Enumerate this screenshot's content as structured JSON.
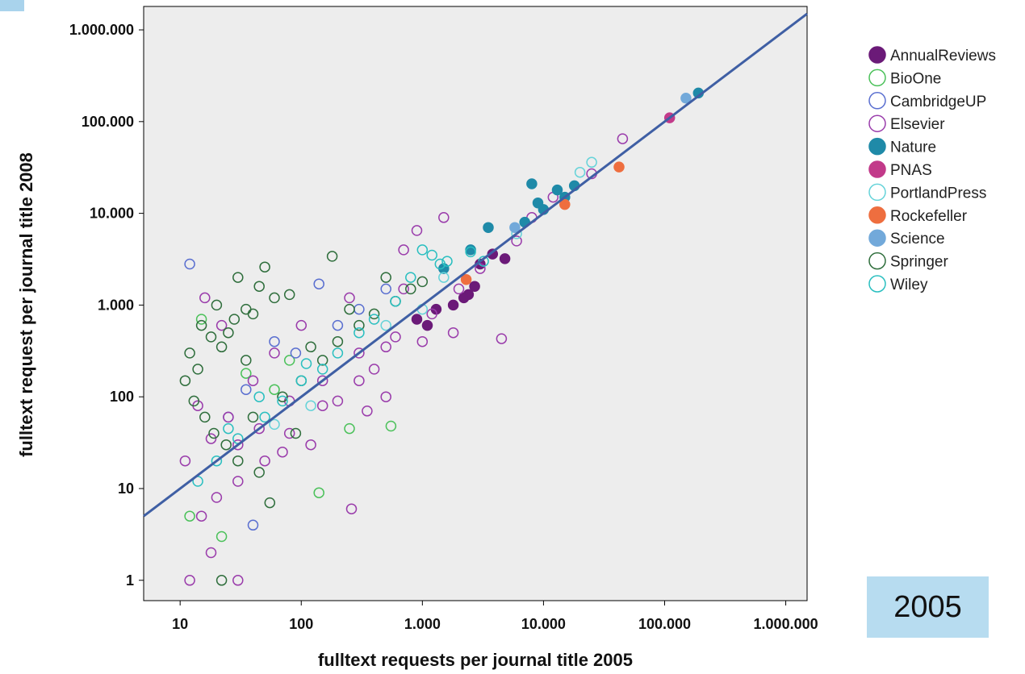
{
  "badge": {
    "text": "2005"
  },
  "colors": {
    "plot_bg": "#ededed",
    "axis": "#000000",
    "fit_line": "#3f5fa4"
  },
  "chart_data": {
    "type": "scatter",
    "xlabel": "fulltext requests per journal title 2005",
    "ylabel": "fulltext request per journal title 2008",
    "x_scale": "log",
    "y_scale": "log",
    "xlim": [
      5,
      1500000
    ],
    "ylim": [
      0.6,
      1800000
    ],
    "x_ticks": [
      10,
      100,
      1000,
      10000,
      100000,
      1000000
    ],
    "x_tick_labels": [
      "10",
      "100",
      "1.000",
      "10.000",
      "100.000",
      "1.000.000"
    ],
    "y_ticks": [
      1,
      10,
      100,
      1000,
      10000,
      100000,
      1000000
    ],
    "y_tick_labels": [
      "1",
      "10",
      "100",
      "1.000",
      "10.000",
      "100.000",
      "1.000.000"
    ],
    "legend_position": "right",
    "reference_line": {
      "slope": 1,
      "intercept": 0,
      "from": [
        5,
        5
      ],
      "to": [
        1500000,
        1500000
      ]
    },
    "series": [
      {
        "name": "AnnualReviews",
        "color": "#6b1a78",
        "filled": true,
        "points": [
          [
            3000,
            2800
          ],
          [
            2400,
            1300
          ],
          [
            1800,
            1000
          ],
          [
            900,
            700
          ],
          [
            1100,
            600
          ],
          [
            2200,
            1200
          ],
          [
            3800,
            3600
          ],
          [
            4800,
            3200
          ],
          [
            1300,
            900
          ],
          [
            2700,
            1600
          ]
        ]
      },
      {
        "name": "BioOne",
        "color": "#4bc15a",
        "filled": false,
        "points": [
          [
            550,
            48
          ],
          [
            250,
            45
          ],
          [
            140,
            9
          ],
          [
            22,
            3
          ],
          [
            12,
            5
          ],
          [
            60,
            120
          ],
          [
            35,
            180
          ],
          [
            15,
            700
          ],
          [
            80,
            250
          ]
        ]
      },
      {
        "name": "CambridgeUP",
        "color": "#5a6fd0",
        "filled": false,
        "points": [
          [
            12,
            2800
          ],
          [
            140,
            1700
          ],
          [
            60,
            400
          ],
          [
            35,
            120
          ],
          [
            25,
            60
          ],
          [
            90,
            300
          ],
          [
            200,
            600
          ],
          [
            300,
            900
          ],
          [
            40,
            4
          ],
          [
            500,
            1500
          ]
        ]
      },
      {
        "name": "Elsevier",
        "color": "#9a3cab",
        "filled": false,
        "points": [
          [
            45000,
            65000
          ],
          [
            25000,
            27000
          ],
          [
            4500,
            430
          ],
          [
            600,
            450
          ],
          [
            260,
            6
          ],
          [
            18,
            2
          ],
          [
            12,
            1
          ],
          [
            30,
            1
          ],
          [
            900,
            6500
          ],
          [
            1500,
            9000
          ],
          [
            700,
            4000
          ],
          [
            3000,
            2500
          ],
          [
            8000,
            9000
          ],
          [
            12000,
            15000
          ],
          [
            400,
            200
          ],
          [
            150,
            80
          ],
          [
            80,
            40
          ],
          [
            50,
            20
          ],
          [
            30,
            12
          ],
          [
            20,
            8
          ],
          [
            15,
            5
          ],
          [
            200,
            90
          ],
          [
            300,
            150
          ],
          [
            500,
            350
          ],
          [
            1200,
            800
          ],
          [
            2000,
            1500
          ],
          [
            6000,
            5000
          ],
          [
            60,
            300
          ],
          [
            100,
            600
          ],
          [
            250,
            1200
          ],
          [
            40,
            150
          ],
          [
            25,
            60
          ],
          [
            18,
            35
          ],
          [
            11,
            20
          ],
          [
            14,
            80
          ],
          [
            16,
            1200
          ],
          [
            22,
            600
          ],
          [
            120,
            30
          ],
          [
            350,
            70
          ],
          [
            1000,
            400
          ],
          [
            1800,
            500
          ],
          [
            700,
            1500
          ],
          [
            150,
            150
          ],
          [
            80,
            90
          ],
          [
            45,
            45
          ],
          [
            300,
            300
          ],
          [
            30,
            30
          ],
          [
            70,
            25
          ],
          [
            500,
            100
          ]
        ]
      },
      {
        "name": "Nature",
        "color": "#1f8aa8",
        "filled": true,
        "points": [
          [
            190000,
            205000
          ],
          [
            8000,
            21000
          ],
          [
            13000,
            18000
          ],
          [
            15000,
            15000
          ],
          [
            18000,
            20000
          ],
          [
            10000,
            11000
          ],
          [
            9000,
            13000
          ],
          [
            7000,
            8000
          ],
          [
            3500,
            7000
          ],
          [
            2500,
            4000
          ],
          [
            1500,
            2500
          ]
        ]
      },
      {
        "name": "PNAS",
        "color": "#c23a8a",
        "filled": true,
        "points": [
          [
            110000,
            110000
          ]
        ]
      },
      {
        "name": "PortlandPress",
        "color": "#66d3d9",
        "filled": false,
        "points": [
          [
            25000,
            36000
          ],
          [
            20000,
            28000
          ],
          [
            1000,
            900
          ],
          [
            500,
            600
          ],
          [
            120,
            80
          ],
          [
            60,
            50
          ],
          [
            1500,
            2000
          ],
          [
            6000,
            6000
          ]
        ]
      },
      {
        "name": "Rockefeller",
        "color": "#ee6e3f",
        "filled": true,
        "points": [
          [
            42000,
            32000
          ],
          [
            15000,
            12500
          ],
          [
            2300,
            1900
          ]
        ]
      },
      {
        "name": "Science",
        "color": "#72a9da",
        "filled": true,
        "points": [
          [
            150000,
            180000
          ],
          [
            5800,
            7000
          ]
        ]
      },
      {
        "name": "Springer",
        "color": "#2f6e3c",
        "filled": false,
        "points": [
          [
            180,
            3400
          ],
          [
            50,
            2600
          ],
          [
            45,
            1600
          ],
          [
            30,
            2000
          ],
          [
            20,
            1000
          ],
          [
            15,
            600
          ],
          [
            12,
            300
          ],
          [
            25,
            500
          ],
          [
            40,
            800
          ],
          [
            60,
            1200
          ],
          [
            80,
            1300
          ],
          [
            35,
            900
          ],
          [
            18,
            450
          ],
          [
            22,
            350
          ],
          [
            28,
            700
          ],
          [
            14,
            200
          ],
          [
            11,
            150
          ],
          [
            13,
            90
          ],
          [
            16,
            60
          ],
          [
            19,
            40
          ],
          [
            24,
            30
          ],
          [
            30,
            20
          ],
          [
            45,
            15
          ],
          [
            55,
            7
          ],
          [
            22,
            1
          ],
          [
            100,
            150
          ],
          [
            150,
            250
          ],
          [
            200,
            400
          ],
          [
            300,
            600
          ],
          [
            400,
            800
          ],
          [
            600,
            1100
          ],
          [
            800,
            1500
          ],
          [
            1000,
            1800
          ],
          [
            70,
            100
          ],
          [
            40,
            60
          ],
          [
            120,
            350
          ],
          [
            250,
            900
          ],
          [
            500,
            2000
          ],
          [
            90,
            40
          ],
          [
            35,
            250
          ]
        ]
      },
      {
        "name": "Wiley",
        "color": "#2abfc0",
        "filled": false,
        "points": [
          [
            600,
            1100
          ],
          [
            800,
            2000
          ],
          [
            1200,
            3500
          ],
          [
            1600,
            3000
          ],
          [
            2500,
            3800
          ],
          [
            300,
            500
          ],
          [
            200,
            300
          ],
          [
            150,
            200
          ],
          [
            100,
            150
          ],
          [
            70,
            90
          ],
          [
            50,
            60
          ],
          [
            30,
            35
          ],
          [
            20,
            20
          ],
          [
            14,
            12
          ],
          [
            400,
            700
          ],
          [
            1000,
            4000
          ],
          [
            1400,
            2800
          ],
          [
            3200,
            3000
          ],
          [
            110,
            230
          ],
          [
            45,
            100
          ],
          [
            25,
            45
          ]
        ]
      }
    ]
  }
}
